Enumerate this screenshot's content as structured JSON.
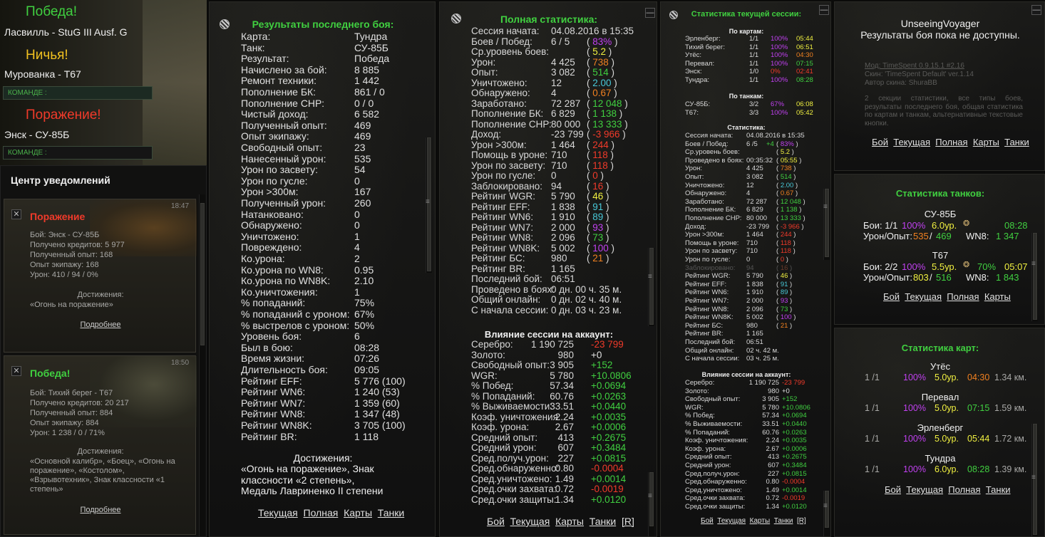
{
  "battle_feed": [
    {
      "result": "Победа!",
      "result_color": "#40d040",
      "line": "Ласвилль - StuG III Ausf. G"
    },
    {
      "result": "Ничья!",
      "result_color": "#f0c020",
      "line": "Мурованка - T67",
      "team_label": "КОМАНДЕ :"
    },
    {
      "result": "Поражение!",
      "result_color": "#f03a2a",
      "line": "Энск - СУ-85Б",
      "team_label": "КОМАНДЕ :"
    }
  ],
  "notifications": {
    "title": "Центр уведомлений",
    "cards": [
      {
        "time": "18:47",
        "result": "Поражение",
        "result_color": "#f03a2a",
        "lines": [
          "Бой: Энск - СУ-85Б",
          "Получено кредитов: 5 977",
          "Полученный опыт: 168",
          "Опыт экипажу: 168",
          "Урон: 410 / 94 / 0%"
        ],
        "ach_title": "Достижения:",
        "ach_text": "«Огонь на поражение»",
        "more": "Подробнее"
      },
      {
        "time": "18:50",
        "result": "Победа!",
        "result_color": "#40d040",
        "lines": [
          "Бой: Тихий берег - T67",
          "Получено кредитов: 20 217",
          "Полученный опыт: 884",
          "Опыт экипажу: 884",
          "Урон: 1 238 / 0 / 71%"
        ],
        "ach_title": "Достижения:",
        "ach_text": "«Основной калибр», «Боец», «Огонь на поражение», «Костолом», «Взрывотехник», Знак классности «1 степень»",
        "more": "Подробнее"
      }
    ]
  },
  "last_battle": {
    "title": "Результаты последнего боя:",
    "rows": [
      [
        "Карта:",
        "Тундра"
      ],
      [
        "Танк:",
        "СУ-85Б"
      ],
      [
        "Результат:",
        "Победа"
      ],
      [
        "Начислено за бой:",
        "8 885"
      ],
      [
        "Ремонт техники:",
        "1 442"
      ],
      [
        "Пополнение БК:",
        "861 / 0"
      ],
      [
        "Пополнение СНР:",
        "0 / 0"
      ],
      [
        "Чистый доход:",
        "6 582"
      ],
      [
        "Полученный опыт:",
        "469"
      ],
      [
        "Опыт экипажу:",
        "469"
      ],
      [
        "Свободный опыт:",
        "23"
      ],
      [
        "Нанесенный урон:",
        "535"
      ],
      [
        "Урон по засвету:",
        "54"
      ],
      [
        "Урон по гусле:",
        "0"
      ],
      [
        "Урон >300м:",
        "167"
      ],
      [
        "Полученный урон:",
        "260"
      ],
      [
        "Натанковано:",
        "0"
      ],
      [
        "Обнаружено:",
        "0"
      ],
      [
        "Уничтожено:",
        "1"
      ],
      [
        "Повреждено:",
        "4"
      ],
      [
        "Ко.урона:",
        "2"
      ],
      [
        "Ко.урона по WN8:",
        "0.95"
      ],
      [
        "Ко.урона по WN8K:",
        "2.10"
      ],
      [
        "Ко.уничтожения:",
        "1"
      ],
      [
        "% попаданий:",
        "75%"
      ],
      [
        "% попаданий с уроном:",
        "67%"
      ],
      [
        "% выстрелов с уроном:",
        "50%"
      ],
      [
        "Уровень боя:",
        "6"
      ],
      [
        "Был в бою:",
        "08:28"
      ],
      [
        "Время жизни:",
        "07:26"
      ],
      [
        "Длительность боя:",
        "09:05"
      ],
      [
        "Рейтинг EFF:",
        "5 776 (100)"
      ],
      [
        "Рейтинг WN6:",
        "1 240 (53)"
      ],
      [
        "Рейтинг WN7:",
        "1 359 (60)"
      ],
      [
        "Рейтинг WN8:",
        "1 347 (48)"
      ],
      [
        "Рейтинг WN8K:",
        "3 705 (100)"
      ],
      [
        "Рейтинг BR:",
        "1 118"
      ]
    ],
    "ach_title": "Достижения:",
    "ach_text": "«Огонь на поражение», Знак классности «2 степень», Медаль Лавриненко  II степени",
    "links": [
      "Текущая",
      "Полная",
      "Карты",
      "Танки"
    ]
  },
  "full_stats": {
    "title": "Полная статистика:",
    "rows": [
      {
        "l": "Сессия начата:",
        "v": "04.08.2016 в 15:35",
        "p": ""
      },
      {
        "l": "Боев / Побед:",
        "v": "6 / 5",
        "p": "83%",
        "c": "#c040f0"
      },
      {
        "l": "Ср.уровень боев:",
        "v": "",
        "p": "5.2",
        "c": "#f0f040"
      },
      {
        "l": "Урон:",
        "v": "4 425",
        "p": "738",
        "c": "#f08020"
      },
      {
        "l": "Опыт:",
        "v": "3 082",
        "p": "514",
        "c": "#40d040"
      },
      {
        "l": "Уничтожено:",
        "v": "12",
        "p": "2.00",
        "c": "#48c8d8"
      },
      {
        "l": "Обнаружено:",
        "v": "4",
        "p": "0.67",
        "c": "#f08020"
      },
      {
        "l": "Заработано:",
        "v": "72 287",
        "p": "12 048",
        "c": "#40d040"
      },
      {
        "l": "Пополнение БК:",
        "v": "6 829",
        "p": "1 138",
        "c": "#40d040"
      },
      {
        "l": "Пополнение СНР:",
        "v": "80 000",
        "p": "13 333",
        "c": "#40d040"
      },
      {
        "l": "Доход:",
        "v": "-23 799",
        "p": "-3 966",
        "c": "#f03a2a"
      },
      {
        "l": "Урон >300м:",
        "v": "1 464",
        "p": "244",
        "c": "#f03a2a"
      },
      {
        "l": "Помощь в уроне:",
        "v": "710",
        "p": "118",
        "c": "#f03a2a"
      },
      {
        "l": "Урон по засвету:",
        "v": "710",
        "p": "118",
        "c": "#f03a2a"
      },
      {
        "l": "Урон по гусле:",
        "v": "0",
        "p": "0",
        "c": "#f03a2a"
      },
      {
        "l": "Заблокировано:",
        "v": "94",
        "p": "16",
        "c": "#f03a2a"
      },
      {
        "l": "Рейтинг WGR:",
        "v": "5 790",
        "p": "46",
        "c": "#f0f040"
      },
      {
        "l": "Рейтинг EFF:",
        "v": "1 838",
        "p": "91",
        "c": "#48c8d8"
      },
      {
        "l": "Рейтинг WN6:",
        "v": "1 910",
        "p": "89",
        "c": "#48c8d8"
      },
      {
        "l": "Рейтинг WN7:",
        "v": "2 000",
        "p": "93",
        "c": "#c040f0"
      },
      {
        "l": "Рейтинг WN8:",
        "v": "2 096",
        "p": "73",
        "c": "#40d040"
      },
      {
        "l": "Рейтинг WN8K:",
        "v": "5 002",
        "p": "100",
        "c": "#c040f0"
      },
      {
        "l": "Рейтинг БС:",
        "v": "980",
        "p": "21",
        "c": "#f08020"
      },
      {
        "l": "Рейтинг BR:",
        "v": "1 165",
        "p": ""
      },
      {
        "l": "Последний бой:",
        "v": "06:51",
        "p": ""
      },
      {
        "l": "Проведено в боях:",
        "v": "0 дн. 00 ч. 35 м.",
        "p": ""
      },
      {
        "l": "Общий онлайн:",
        "v": "0 дн. 02 ч. 40 м.",
        "p": ""
      },
      {
        "l": "С начала сессии:",
        "v": "0 дн. 03 ч. 23 м.",
        "p": ""
      }
    ],
    "influence_title": "Влияние сессии на аккаунт:",
    "influence": [
      {
        "l": "Серебро:",
        "v": "1 190 725",
        "d": "-23 799",
        "c": "#f03a2a"
      },
      {
        "l": "Золото:",
        "v": "980",
        "d": "+0",
        "c": "#e0e0e0"
      },
      {
        "l": "Свободный опыт:",
        "v": "3 905",
        "d": "+152",
        "c": "#40d040"
      },
      {
        "l": "WGR:",
        "v": "5 780",
        "d": "+10.0806",
        "c": "#40d040"
      },
      {
        "l": "% Побед:",
        "v": "57.34",
        "d": "+0.0694",
        "c": "#40d040"
      },
      {
        "l": "% Попаданий:",
        "v": "60.76",
        "d": "+0.0263",
        "c": "#40d040"
      },
      {
        "l": "% Выживаемости:",
        "v": "33.51",
        "d": "+0.0440",
        "c": "#40d040"
      },
      {
        "l": "Коэф. уничтожения:",
        "v": "2.24",
        "d": "+0.0035",
        "c": "#40d040"
      },
      {
        "l": "Коэф. урона:",
        "v": "2.67",
        "d": "+0.0006",
        "c": "#40d040"
      },
      {
        "l": "Средний опыт:",
        "v": "413",
        "d": "+0.2675",
        "c": "#40d040"
      },
      {
        "l": "Средний урон:",
        "v": "607",
        "d": "+0.3484",
        "c": "#40d040"
      },
      {
        "l": "Сред.получ.урон:",
        "v": "227",
        "d": "+0.0815",
        "c": "#40d040"
      },
      {
        "l": "Сред.обнаруженно:",
        "v": "0.80",
        "d": "-0.0004",
        "c": "#f03a2a"
      },
      {
        "l": "Сред.уничтожено:",
        "v": "1.49",
        "d": "+0.0014",
        "c": "#40d040"
      },
      {
        "l": "Сред.очки захвата:",
        "v": "0.72",
        "d": "-0.0019",
        "c": "#f03a2a"
      },
      {
        "l": "Сред.очки защиты:",
        "v": "1.34",
        "d": "+0.0120",
        "c": "#40d040"
      }
    ],
    "links": [
      "Бой",
      "Текущая",
      "Карты",
      "Танки",
      "[R]"
    ]
  },
  "session": {
    "title": "Статистика текущей сессии:",
    "by_maps_title": "По картам:",
    "maps": [
      {
        "n": "Эрленберг:",
        "b": "1/1",
        "p": "100%",
        "pc": "#c040f0",
        "t": "05:44",
        "tc": "#f0f040"
      },
      {
        "n": "Тихий берег:",
        "b": "1/1",
        "p": "100%",
        "pc": "#c040f0",
        "t": "06:51",
        "tc": "#f0f040"
      },
      {
        "n": "Утёс:",
        "b": "1/1",
        "p": "100%",
        "pc": "#c040f0",
        "t": "04:30",
        "tc": "#f08020"
      },
      {
        "n": "Перевал:",
        "b": "1/1",
        "p": "100%",
        "pc": "#c040f0",
        "t": "07:15",
        "tc": "#40d040"
      },
      {
        "n": "Энск:",
        "b": "1/0",
        "p": "0%",
        "pc": "#f03a2a",
        "t": "02:41",
        "tc": "#f03a2a"
      },
      {
        "n": "Тундра:",
        "b": "1/1",
        "p": "100%",
        "pc": "#c040f0",
        "t": "08:28",
        "tc": "#40d040"
      }
    ],
    "by_tanks_title": "По танкам:",
    "tanks": [
      {
        "n": "СУ-85Б:",
        "b": "3/2",
        "p": "67%",
        "pc": "#c040f0",
        "t": "06:08",
        "tc": "#f0f040"
      },
      {
        "n": "T67:",
        "b": "3/3",
        "p": "100%",
        "pc": "#c040f0",
        "t": "05:42",
        "tc": "#f0f040"
      }
    ],
    "stats_title": "Статистика:",
    "rows": [
      {
        "l": "Сессия начата:",
        "v": "04.08.2016 в 15:35",
        "p": ""
      },
      {
        "l": "Боев / Побед:",
        "v": "6 /5",
        "x": "+4",
        "p": "83%",
        "c": "#c040f0"
      },
      {
        "l": "Ср.уровень боев:",
        "v": "",
        "p": "5.2",
        "c": "#f0f040"
      },
      {
        "l": "Проведено в боях:",
        "v": "00:35:32",
        "p": "05:55",
        "c": "#f0f040"
      },
      {
        "l": "Урон:",
        "v": "4 425",
        "p": "738",
        "c": "#f08020"
      },
      {
        "l": "Опыт:",
        "v": "3 082",
        "p": "514",
        "c": "#40d040"
      },
      {
        "l": "Уничтожено:",
        "v": "12",
        "p": "2.00",
        "c": "#48c8d8"
      },
      {
        "l": "Обнаружено:",
        "v": "4",
        "p": "0.67",
        "c": "#f08020"
      },
      {
        "l": "Заработано:",
        "v": "72 287",
        "p": "12 048",
        "c": "#40d040"
      },
      {
        "l": "Пополнение БК:",
        "v": "6 829",
        "p": "1 138",
        "c": "#40d040"
      },
      {
        "l": "Пополнение СНР:",
        "v": "80 000",
        "p": "13 333",
        "c": "#40d040"
      },
      {
        "l": "Доход:",
        "v": "-23 799",
        "p": "-3 966",
        "c": "#f03a2a"
      },
      {
        "l": "Урон >300м:",
        "v": "1 464",
        "p": "244",
        "c": "#f03a2a"
      },
      {
        "l": "Помощь в уроне:",
        "v": "710",
        "p": "118",
        "c": "#f03a2a"
      },
      {
        "l": "Урон по засвету:",
        "v": "710",
        "p": "118",
        "c": "#f03a2a"
      },
      {
        "l": "Урон по гусле:",
        "v": "0",
        "p": "0",
        "c": "#f03a2a"
      },
      {
        "l": "Заблокировано:",
        "v": "94",
        "p": "16",
        "c": "#f03a2a"
      },
      {
        "l": "Рейтинг WGR:",
        "v": "5 790",
        "p": "46",
        "c": "#f0f040"
      },
      {
        "l": "Рейтинг EFF:",
        "v": "1 838",
        "p": "91",
        "c": "#48c8d8"
      },
      {
        "l": "Рейтинг WN6:",
        "v": "1 910",
        "p": "89",
        "c": "#48c8d8"
      },
      {
        "l": "Рейтинг WN7:",
        "v": "2 000",
        "p": "93",
        "c": "#c040f0"
      },
      {
        "l": "Рейтинг WN8:",
        "v": "2 096",
        "p": "73",
        "c": "#40d040"
      },
      {
        "l": "Рейтинг WN8K:",
        "v": "5 002",
        "p": "100",
        "c": "#c040f0"
      },
      {
        "l": "Рейтинг БС:",
        "v": "980",
        "p": "21",
        "c": "#f08020"
      },
      {
        "l": "Рейтинг BR:",
        "v": "1 165",
        "p": ""
      },
      {
        "l": "Последний бой:",
        "v": "06:51",
        "p": ""
      },
      {
        "l": "Общий онлайн:",
        "v": "02 ч. 42 м.",
        "p": ""
      },
      {
        "l": "С начала сессии:",
        "v": "03 ч. 25 м.",
        "p": ""
      }
    ],
    "influence_title": "Влияние сессии на аккаунт:",
    "influence": [
      {
        "l": "Серебро:",
        "v": "1 190 725",
        "d": "-23 799",
        "c": "#f03a2a"
      },
      {
        "l": "Золото:",
        "v": "980",
        "d": "+0",
        "c": "#e0e0e0"
      },
      {
        "l": "Свободный опыт:",
        "v": "3 905",
        "d": "+152",
        "c": "#40d040"
      },
      {
        "l": "WGR:",
        "v": "5 780",
        "d": "+10.0806",
        "c": "#40d040"
      },
      {
        "l": "% Побед:",
        "v": "57.34",
        "d": "+0.0694",
        "c": "#40d040"
      },
      {
        "l": "% Выживаемости:",
        "v": "33.51",
        "d": "+0.0440",
        "c": "#40d040"
      },
      {
        "l": "% Попаданий:",
        "v": "60.76",
        "d": "+0.0263",
        "c": "#40d040"
      },
      {
        "l": "Коэф. уничтожения:",
        "v": "2.24",
        "d": "+0.0035",
        "c": "#40d040"
      },
      {
        "l": "Коэф. урона:",
        "v": "2.67",
        "d": "+0.0006",
        "c": "#40d040"
      },
      {
        "l": "Средний опыт:",
        "v": "413",
        "d": "+0.2675",
        "c": "#40d040"
      },
      {
        "l": "Средний урон:",
        "v": "607",
        "d": "+0.3484",
        "c": "#40d040"
      },
      {
        "l": "Сред.получ.урон:",
        "v": "227",
        "d": "+0.0815",
        "c": "#40d040"
      },
      {
        "l": "Сред.обнаруженно:",
        "v": "0.80",
        "d": "-0.0004",
        "c": "#f03a2a"
      },
      {
        "l": "Сред.уничтожено:",
        "v": "1.49",
        "d": "+0.0014",
        "c": "#40d040"
      },
      {
        "l": "Сред.очки захвата:",
        "v": "0.72",
        "d": "-0.0019",
        "c": "#f03a2a"
      },
      {
        "l": "Сред.очки защиты:",
        "v": "1.34",
        "d": "+0.0120",
        "c": "#40d040"
      }
    ],
    "links": [
      "Бой",
      "Текущая",
      "Карты",
      "Танки",
      "[R]"
    ]
  },
  "info_panel": {
    "user": "UnseeingVoyager",
    "message": "Результаты боя пока не доступны.",
    "mod_line1": "Мод: TimeSpent 0.9.15.1 #2.16",
    "mod_line2": "Скин: 'TimeSpent Default' ver.1.14",
    "mod_line3": "Автор скина: ShuraBB",
    "desc": "2 секции статистики, все типы боев, результаты последнего боя, общая статистика по картам и танкам, альтернативные текстовые кнопки.",
    "links": [
      "Бой",
      "Текущая",
      "Полная",
      "Карты",
      "Танки"
    ]
  },
  "tank_stats": {
    "title": "Статистика танков:",
    "tanks": [
      {
        "name": "СУ-85Б",
        "battles": "Бои: 1/1",
        "pct": "100%",
        "pc": "#c040f0",
        "lvl": "6.0ур.",
        "time": "08:28",
        "tc": "#40d040",
        "dmg_label": "Урон/Опыт:",
        "dmg": "535",
        "exp": "469",
        "dc": "#f08020",
        "ec": "#40d040",
        "wn8": "WN8:",
        "wn8v": "1 347",
        "wc": "#40d040"
      },
      {
        "name": "T67",
        "battles": "Бои: 2/2",
        "pct": "100%",
        "pc": "#c040f0",
        "lvl": "5.5ур.",
        "pct2": "70%",
        "time": "05:07",
        "tc": "#f0f040",
        "dmg_label": "Урон/Опыт:",
        "dmg": "803",
        "exp": "516",
        "dc": "#f0f040",
        "ec": "#40d040",
        "wn8": "WN8:",
        "wn8v": "1 843",
        "wc": "#40d040"
      }
    ],
    "links": [
      "Бой",
      "Текущая",
      "Полная",
      "Карты"
    ]
  },
  "map_stats": {
    "title": "Статистика карт:",
    "maps": [
      {
        "name": "Утёс",
        "b": "1 /1",
        "pct": "100%",
        "lvl": "5.0ур.",
        "time": "04:30",
        "tc": "#f08020",
        "dist": "1.34 км."
      },
      {
        "name": "Перевал",
        "b": "1 /1",
        "pct": "100%",
        "lvl": "5.0ур.",
        "time": "07:15",
        "tc": "#40d040",
        "dist": "1.59 км."
      },
      {
        "name": "Эрленберг",
        "b": "1 /1",
        "pct": "100%",
        "lvl": "5.0ур.",
        "time": "05:44",
        "tc": "#f0f040",
        "dist": "1.72 км."
      },
      {
        "name": "Тундра",
        "b": "1 /1",
        "pct": "100%",
        "lvl": "6.0ур.",
        "time": "08:28",
        "tc": "#40d040",
        "dist": "1.39 км."
      }
    ],
    "links": [
      "Бой",
      "Текущая",
      "Полная",
      "Танки"
    ]
  }
}
